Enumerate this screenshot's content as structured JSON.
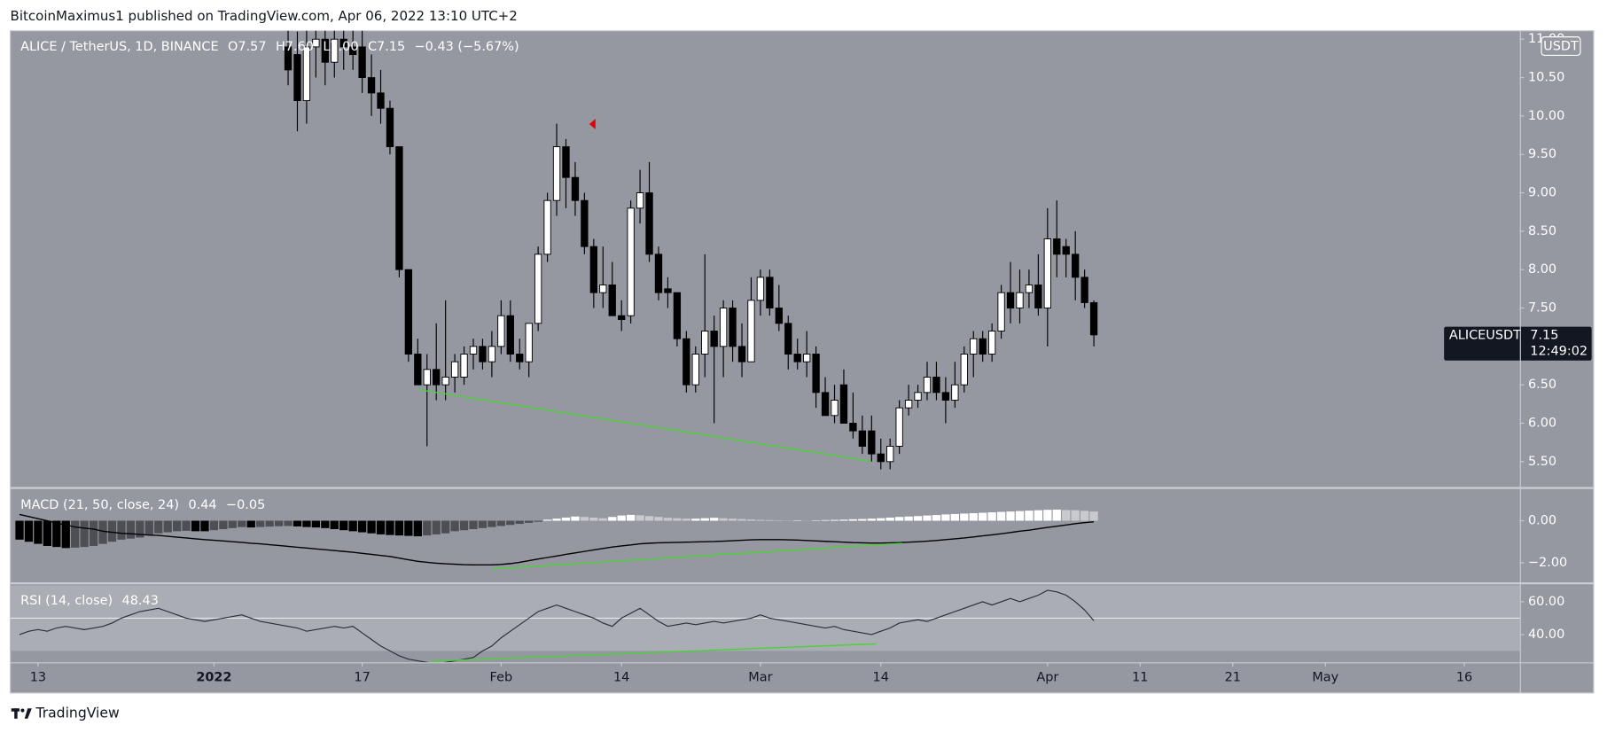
{
  "header": "BitcoinMaximus1 published on TradingView.com, Apr 06, 2022 13:10 UTC+2",
  "footer": "TradingView",
  "chart_data": {
    "type": "panes",
    "x": [
      "2021-12-11",
      "2021-12-12",
      "2021-12-13",
      "2021-12-14",
      "2021-12-15",
      "2021-12-16",
      "2021-12-17",
      "2021-12-18",
      "2021-12-19",
      "2021-12-20",
      "2021-12-21",
      "2021-12-22",
      "2021-12-23",
      "2021-12-24",
      "2021-12-25",
      "2021-12-26",
      "2021-12-27",
      "2021-12-28",
      "2021-12-29",
      "2021-12-30",
      "2021-12-31",
      "2022-01-01",
      "2022-01-02",
      "2022-01-03",
      "2022-01-04",
      "2022-01-05",
      "2022-01-06",
      "2022-01-07",
      "2022-01-08",
      "2022-01-09",
      "2022-01-10",
      "2022-01-11",
      "2022-01-12",
      "2022-01-13",
      "2022-01-14",
      "2022-01-15",
      "2022-01-16",
      "2022-01-17",
      "2022-01-18",
      "2022-01-19",
      "2022-01-20",
      "2022-01-21",
      "2022-01-22",
      "2022-01-23",
      "2022-01-24",
      "2022-01-25",
      "2022-01-26",
      "2022-01-27",
      "2022-01-28",
      "2022-01-29",
      "2022-01-30",
      "2022-01-31",
      "2022-02-01",
      "2022-02-02",
      "2022-02-03",
      "2022-02-04",
      "2022-02-05",
      "2022-02-06",
      "2022-02-07",
      "2022-02-08",
      "2022-02-09",
      "2022-02-10",
      "2022-02-11",
      "2022-02-12",
      "2022-02-13",
      "2022-02-14",
      "2022-02-15",
      "2022-02-16",
      "2022-02-17",
      "2022-02-18",
      "2022-02-19",
      "2022-02-20",
      "2022-02-21",
      "2022-02-22",
      "2022-02-23",
      "2022-02-24",
      "2022-02-25",
      "2022-02-26",
      "2022-02-27",
      "2022-02-28",
      "2022-03-01",
      "2022-03-02",
      "2022-03-03",
      "2022-03-04",
      "2022-03-05",
      "2022-03-06",
      "2022-03-07",
      "2022-03-08",
      "2022-03-09",
      "2022-03-10",
      "2022-03-11",
      "2022-03-12",
      "2022-03-13",
      "2022-03-14",
      "2022-03-15",
      "2022-03-16",
      "2022-03-17",
      "2022-03-18",
      "2022-03-19",
      "2022-03-20",
      "2022-03-21",
      "2022-03-22",
      "2022-03-23",
      "2022-03-24",
      "2022-03-25",
      "2022-03-26",
      "2022-03-27",
      "2022-03-28",
      "2022-03-29",
      "2022-03-30",
      "2022-03-31",
      "2022-04-01",
      "2022-04-02",
      "2022-04-03",
      "2022-04-04",
      "2022-04-05",
      "2022-04-06"
    ],
    "xlim": [
      "2021-12-10",
      "2022-05-22"
    ],
    "xticks": [
      {
        "value": "2021-12-13",
        "label": "13"
      },
      {
        "value": "2022-01-01",
        "label": "2022"
      },
      {
        "value": "2022-01-17",
        "label": "17"
      },
      {
        "value": "2022-02-01",
        "label": "Feb"
      },
      {
        "value": "2022-02-14",
        "label": "14"
      },
      {
        "value": "2022-03-01",
        "label": "Mar"
      },
      {
        "value": "2022-03-14",
        "label": "14"
      },
      {
        "value": "2022-04-01",
        "label": "Apr"
      },
      {
        "value": "2022-04-11",
        "label": "11"
      },
      {
        "value": "2022-04-21",
        "label": "21"
      },
      {
        "value": "2022-05-01",
        "label": "May"
      },
      {
        "value": "2022-05-16",
        "label": "16"
      }
    ],
    "panes": [
      {
        "type": "candlestick",
        "title": "ALICE / TetherUS, 1D, BINANCE",
        "legend": [
          "O7.57",
          "H7.60",
          "L7.00",
          "C7.15",
          "−0.43 (−5.67%)"
        ],
        "currency": "USDT",
        "symbol": "ALICEUSDT",
        "last_price": 7.15,
        "countdown": "12:49:02",
        "ylim": [
          5.17,
          11.11
        ],
        "yticks": [
          {
            "value": 5.5,
            "label": "5.50"
          },
          {
            "value": 6,
            "label": "6.00"
          },
          {
            "value": 6.5,
            "label": "6.50"
          },
          {
            "value": 7,
            "label": "7.00"
          },
          {
            "value": 7.5,
            "label": "7.50"
          },
          {
            "value": 8,
            "label": "8.00"
          },
          {
            "value": 8.5,
            "label": "8.50"
          },
          {
            "value": 9,
            "label": "9.00"
          },
          {
            "value": 9.5,
            "label": "9.50"
          },
          {
            "value": 10,
            "label": "10.00"
          },
          {
            "value": 10.5,
            "label": "10.50"
          },
          {
            "value": 11,
            "label": "11.00"
          }
        ],
        "up_color": "#ffffff",
        "down_color": "#000000",
        "open": [
          null,
          null,
          null,
          null,
          null,
          null,
          null,
          null,
          null,
          null,
          null,
          null,
          null,
          null,
          null,
          null,
          null,
          null,
          null,
          null,
          null,
          null,
          null,
          null,
          null,
          null,
          null,
          null,
          null,
          10.9,
          10.8,
          10.2,
          10.9,
          11.0,
          10.7,
          11.0,
          10.9,
          10.9,
          10.5,
          10.3,
          10.1,
          9.6,
          8.0,
          6.9,
          6.5,
          6.7,
          6.5,
          6.6,
          6.6,
          6.9,
          7.0,
          6.8,
          7.0,
          7.4,
          6.9,
          6.8,
          7.3,
          8.2,
          8.9,
          9.6,
          9.2,
          8.9,
          8.3,
          7.7,
          7.8,
          7.4,
          7.4,
          8.8,
          9.0,
          8.2,
          7.75,
          7.7,
          7.1,
          6.5,
          6.9,
          7.2,
          7.0,
          7.5,
          7.0,
          6.8,
          7.6,
          7.9,
          7.5,
          7.3,
          6.9,
          6.8,
          6.9,
          6.4,
          6.1,
          6.5,
          6.0,
          5.9,
          5.9,
          5.6,
          5.5,
          5.7,
          6.2,
          6.3,
          6.4,
          6.6,
          6.4,
          6.3,
          6.5,
          6.9,
          7.1,
          6.9,
          7.2,
          7.7,
          7.5,
          7.7,
          7.8,
          7.5,
          8.4,
          8.3,
          8.2,
          7.9,
          7.57
        ],
        "high": [
          null,
          null,
          null,
          null,
          null,
          null,
          null,
          null,
          null,
          null,
          null,
          null,
          null,
          null,
          null,
          null,
          null,
          null,
          null,
          null,
          null,
          null,
          null,
          null,
          null,
          null,
          null,
          null,
          null,
          11.2,
          11.1,
          11.2,
          11.3,
          11.2,
          11.2,
          11.3,
          11.3,
          11.2,
          10.8,
          10.6,
          10.2,
          9.6,
          8.0,
          7.1,
          6.9,
          7.3,
          7.6,
          6.9,
          7.0,
          7.1,
          7.1,
          7.2,
          7.6,
          7.6,
          7.1,
          7.3,
          8.3,
          9.0,
          9.9,
          9.7,
          9.4,
          9.0,
          8.4,
          8.3,
          8.1,
          7.6,
          8.9,
          9.3,
          9.4,
          8.3,
          7.9,
          7.7,
          7.2,
          7.0,
          8.2,
          7.4,
          7.6,
          7.6,
          7.3,
          7.9,
          8.0,
          8.0,
          7.8,
          7.4,
          7.1,
          7.2,
          7.0,
          6.6,
          6.5,
          6.7,
          6.4,
          6.1,
          6.1,
          5.8,
          5.8,
          6.3,
          6.5,
          6.5,
          6.8,
          6.8,
          6.6,
          6.8,
          7.0,
          7.2,
          7.2,
          7.3,
          7.8,
          8.1,
          8.0,
          8.0,
          8.2,
          8.8,
          8.9,
          8.4,
          8.5,
          8.0,
          7.6
        ],
        "low": [
          null,
          null,
          null,
          null,
          null,
          null,
          null,
          null,
          null,
          null,
          null,
          null,
          null,
          null,
          null,
          null,
          null,
          null,
          null,
          null,
          null,
          null,
          null,
          null,
          null,
          null,
          null,
          null,
          null,
          10.4,
          9.8,
          9.9,
          10.5,
          10.4,
          10.5,
          10.6,
          10.6,
          10.3,
          10.0,
          9.9,
          9.5,
          7.9,
          6.8,
          6.5,
          5.7,
          6.3,
          6.3,
          6.4,
          6.5,
          6.7,
          6.7,
          6.6,
          6.9,
          6.8,
          6.7,
          6.6,
          7.2,
          8.1,
          8.7,
          8.8,
          8.7,
          8.2,
          7.5,
          7.5,
          7.4,
          7.2,
          7.3,
          8.6,
          8.1,
          7.6,
          7.5,
          7.0,
          6.4,
          6.4,
          6.6,
          6.0,
          6.6,
          6.8,
          6.6,
          6.8,
          7.4,
          7.4,
          7.2,
          6.7,
          6.7,
          6.6,
          6.2,
          6.1,
          6.0,
          6.0,
          5.8,
          5.6,
          5.5,
          5.4,
          5.4,
          5.6,
          6.1,
          6.2,
          6.3,
          6.3,
          6.0,
          6.2,
          6.4,
          6.6,
          6.8,
          6.8,
          7.1,
          7.3,
          7.3,
          7.5,
          7.4,
          7.0,
          7.9,
          7.9,
          7.6,
          7.5,
          7.0
        ],
        "close": [
          null,
          null,
          null,
          null,
          null,
          null,
          null,
          null,
          null,
          null,
          null,
          null,
          null,
          null,
          null,
          null,
          null,
          null,
          null,
          null,
          null,
          null,
          null,
          null,
          null,
          null,
          null,
          null,
          null,
          10.6,
          10.2,
          10.9,
          11.0,
          10.7,
          11.0,
          10.9,
          10.8,
          10.5,
          10.3,
          10.1,
          9.6,
          8.0,
          6.9,
          6.5,
          6.7,
          6.5,
          6.6,
          6.8,
          6.9,
          7.0,
          6.8,
          7.0,
          7.4,
          6.9,
          6.8,
          7.3,
          8.2,
          8.9,
          9.6,
          9.2,
          8.9,
          8.3,
          7.7,
          7.8,
          7.4,
          7.35,
          8.8,
          9.0,
          8.2,
          7.7,
          7.7,
          7.1,
          6.5,
          6.9,
          7.2,
          7.0,
          7.5,
          7.0,
          6.8,
          7.6,
          7.9,
          7.5,
          7.3,
          6.9,
          6.8,
          6.9,
          6.4,
          6.1,
          6.3,
          6.0,
          5.9,
          5.7,
          5.6,
          5.5,
          5.7,
          6.2,
          6.3,
          6.4,
          6.6,
          6.4,
          6.3,
          6.5,
          6.9,
          7.1,
          6.9,
          7.2,
          7.7,
          7.5,
          7.7,
          7.8,
          7.5,
          8.4,
          8.2,
          8.2,
          7.9,
          7.57,
          7.15
        ]
      },
      {
        "type": "macd",
        "title": "MACD (21, 50, close, 24)",
        "legend": [
          "0.44",
          "−0.05"
        ],
        "ylim": [
          -2.93,
          1.51
        ],
        "yticks": [
          {
            "value": 0,
            "label": "0.00"
          },
          {
            "value": -2,
            "label": "−2.00"
          }
        ],
        "histogram_colors": {
          "positive_rising": "#ffffff",
          "positive_falling": "#c9cacf",
          "negative_falling": "#000000",
          "negative_rising": "#4d4f55"
        },
        "line_color": "#000000",
        "histogram": [
          -0.9,
          -1.0,
          -1.1,
          -1.2,
          -1.25,
          -1.3,
          -1.28,
          -1.25,
          -1.2,
          -1.1,
          -1.0,
          -0.9,
          -0.85,
          -0.8,
          -0.7,
          -0.6,
          -0.55,
          -0.5,
          -0.48,
          -0.5,
          -0.5,
          -0.45,
          -0.4,
          -0.35,
          -0.3,
          -0.32,
          -0.3,
          -0.28,
          -0.26,
          -0.25,
          -0.27,
          -0.3,
          -0.32,
          -0.35,
          -0.4,
          -0.45,
          -0.5,
          -0.55,
          -0.6,
          -0.65,
          -0.68,
          -0.7,
          -0.72,
          -0.74,
          -0.7,
          -0.65,
          -0.6,
          -0.5,
          -0.45,
          -0.4,
          -0.35,
          -0.3,
          -0.25,
          -0.2,
          -0.15,
          -0.1,
          -0.05,
          0.05,
          0.1,
          0.15,
          0.2,
          0.18,
          0.15,
          0.12,
          0.18,
          0.25,
          0.28,
          0.26,
          0.22,
          0.18,
          0.14,
          0.12,
          0.1,
          0.1,
          0.12,
          0.14,
          0.12,
          0.1,
          0.08,
          0.06,
          0.04,
          0.03,
          0.02,
          0.01,
          0.02,
          0.01,
          0.02,
          0.03,
          0.04,
          0.05,
          0.07,
          0.08,
          0.1,
          0.12,
          0.15,
          0.18,
          0.2,
          0.22,
          0.25,
          0.27,
          0.3,
          0.32,
          0.34,
          0.36,
          0.38,
          0.4,
          0.42,
          0.44,
          0.46,
          0.48,
          0.5,
          0.52,
          0.53,
          0.51,
          0.5,
          0.47,
          0.44
        ],
        "line": [
          0.3,
          0.2,
          0.1,
          0,
          -0.1,
          -0.2,
          -0.3,
          -0.35,
          -0.4,
          -0.5,
          -0.55,
          -0.6,
          -0.62,
          -0.65,
          -0.68,
          -0.7,
          -0.74,
          -0.78,
          -0.82,
          -0.86,
          -0.9,
          -0.93,
          -0.96,
          -1.0,
          -1.03,
          -1.07,
          -1.1,
          -1.14,
          -1.18,
          -1.22,
          -1.26,
          -1.3,
          -1.34,
          -1.38,
          -1.42,
          -1.46,
          -1.5,
          -1.55,
          -1.6,
          -1.65,
          -1.7,
          -1.78,
          -1.86,
          -1.93,
          -1.98,
          -2.02,
          -2.05,
          -2.07,
          -2.09,
          -2.1,
          -2.1,
          -2.1,
          -2.08,
          -2.04,
          -1.98,
          -1.9,
          -1.82,
          -1.75,
          -1.68,
          -1.6,
          -1.53,
          -1.46,
          -1.39,
          -1.32,
          -1.25,
          -1.2,
          -1.15,
          -1.1,
          -1.07,
          -1.05,
          -1.04,
          -1.03,
          -1.02,
          -1.01,
          -1.0,
          -0.99,
          -0.97,
          -0.95,
          -0.93,
          -0.91,
          -0.9,
          -0.9,
          -0.9,
          -0.91,
          -0.92,
          -0.94,
          -0.96,
          -0.98,
          -1.0,
          -1.02,
          -1.04,
          -1.05,
          -1.06,
          -1.06,
          -1.05,
          -1.04,
          -1.02,
          -1.0,
          -0.97,
          -0.94,
          -0.9,
          -0.86,
          -0.82,
          -0.77,
          -0.72,
          -0.67,
          -0.62,
          -0.56,
          -0.5,
          -0.45,
          -0.38,
          -0.32,
          -0.26,
          -0.2,
          -0.14,
          -0.09,
          -0.05
        ]
      },
      {
        "type": "line",
        "title": "RSI (14, close)",
        "legend": [
          "48.43"
        ],
        "ylim": [
          23.1,
          70.6
        ],
        "yticks": [
          {
            "value": 40,
            "label": "40.00"
          },
          {
            "value": 60,
            "label": "60.00"
          }
        ],
        "band": [
          30,
          70
        ],
        "midline": 50,
        "band_color": "#abadb4",
        "color": "#2a2e39",
        "values": [
          40,
          42,
          43,
          42,
          44,
          45,
          44,
          43,
          44,
          45,
          47,
          50,
          52,
          54,
          55,
          56,
          54,
          52,
          50,
          49,
          48,
          49,
          50,
          51,
          52,
          50,
          48,
          47,
          46,
          45,
          44,
          42,
          43,
          44,
          45,
          44,
          45,
          41,
          37,
          33,
          30,
          27,
          25,
          24,
          23,
          22,
          23,
          24,
          25,
          26,
          30,
          33,
          38,
          42,
          46,
          50,
          54,
          56,
          58,
          56,
          54,
          52,
          50,
          47,
          45,
          50,
          53,
          56,
          52,
          48,
          45,
          46,
          47,
          46,
          47,
          48,
          47,
          48,
          49,
          50,
          52,
          50,
          49,
          48,
          47,
          46,
          45,
          44,
          45,
          43,
          42,
          41,
          40,
          42,
          44,
          47,
          48,
          49,
          48,
          50,
          52,
          54,
          56,
          58,
          60,
          58,
          60,
          62,
          60,
          62,
          64,
          67,
          66,
          64,
          60,
          55,
          48.43
        ]
      }
    ]
  }
}
